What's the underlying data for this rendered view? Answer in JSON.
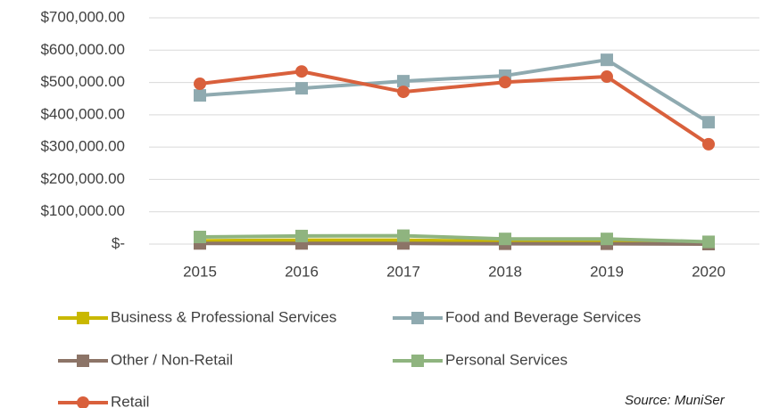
{
  "chart_data": {
    "type": "line",
    "categories": [
      "2015",
      "2016",
      "2017",
      "2018",
      "2019",
      "2020"
    ],
    "series": [
      {
        "name": "Business & Professional Services",
        "color": "#c9b800",
        "marker": "square",
        "values": [
          10000,
          12000,
          12000,
          8000,
          7000,
          3000
        ]
      },
      {
        "name": "Food and Beverage Services",
        "color": "#8faab0",
        "marker": "square",
        "values": [
          460000,
          482000,
          504000,
          521000,
          570000,
          377000
        ]
      },
      {
        "name": "Other / Non-Retail",
        "color": "#8c7467",
        "marker": "square",
        "values": [
          2000,
          2000,
          2000,
          1000,
          1000,
          0
        ]
      },
      {
        "name": "Personal Services",
        "color": "#8fb47f",
        "marker": "square",
        "values": [
          22000,
          25000,
          26000,
          16000,
          16000,
          7000
        ]
      },
      {
        "name": "Retail",
        "color": "#d9603c",
        "marker": "circle",
        "values": [
          496000,
          534000,
          471000,
          501000,
          518000,
          309000
        ]
      }
    ],
    "ylim": [
      0,
      700000
    ],
    "yticks": [
      {
        "value": 0,
        "label": "$-"
      },
      {
        "value": 100000,
        "label": "$100,000.00"
      },
      {
        "value": 200000,
        "label": "$200,000.00"
      },
      {
        "value": 300000,
        "label": "$300,000.00"
      },
      {
        "value": 400000,
        "label": "$400,000.00"
      },
      {
        "value": 500000,
        "label": "$500,000.00"
      },
      {
        "value": 600000,
        "label": "$600,000.00"
      },
      {
        "value": 700000,
        "label": "$700,000.00"
      }
    ],
    "grid": true,
    "legend": "bottom",
    "annotation": "Source: MuniSer"
  }
}
